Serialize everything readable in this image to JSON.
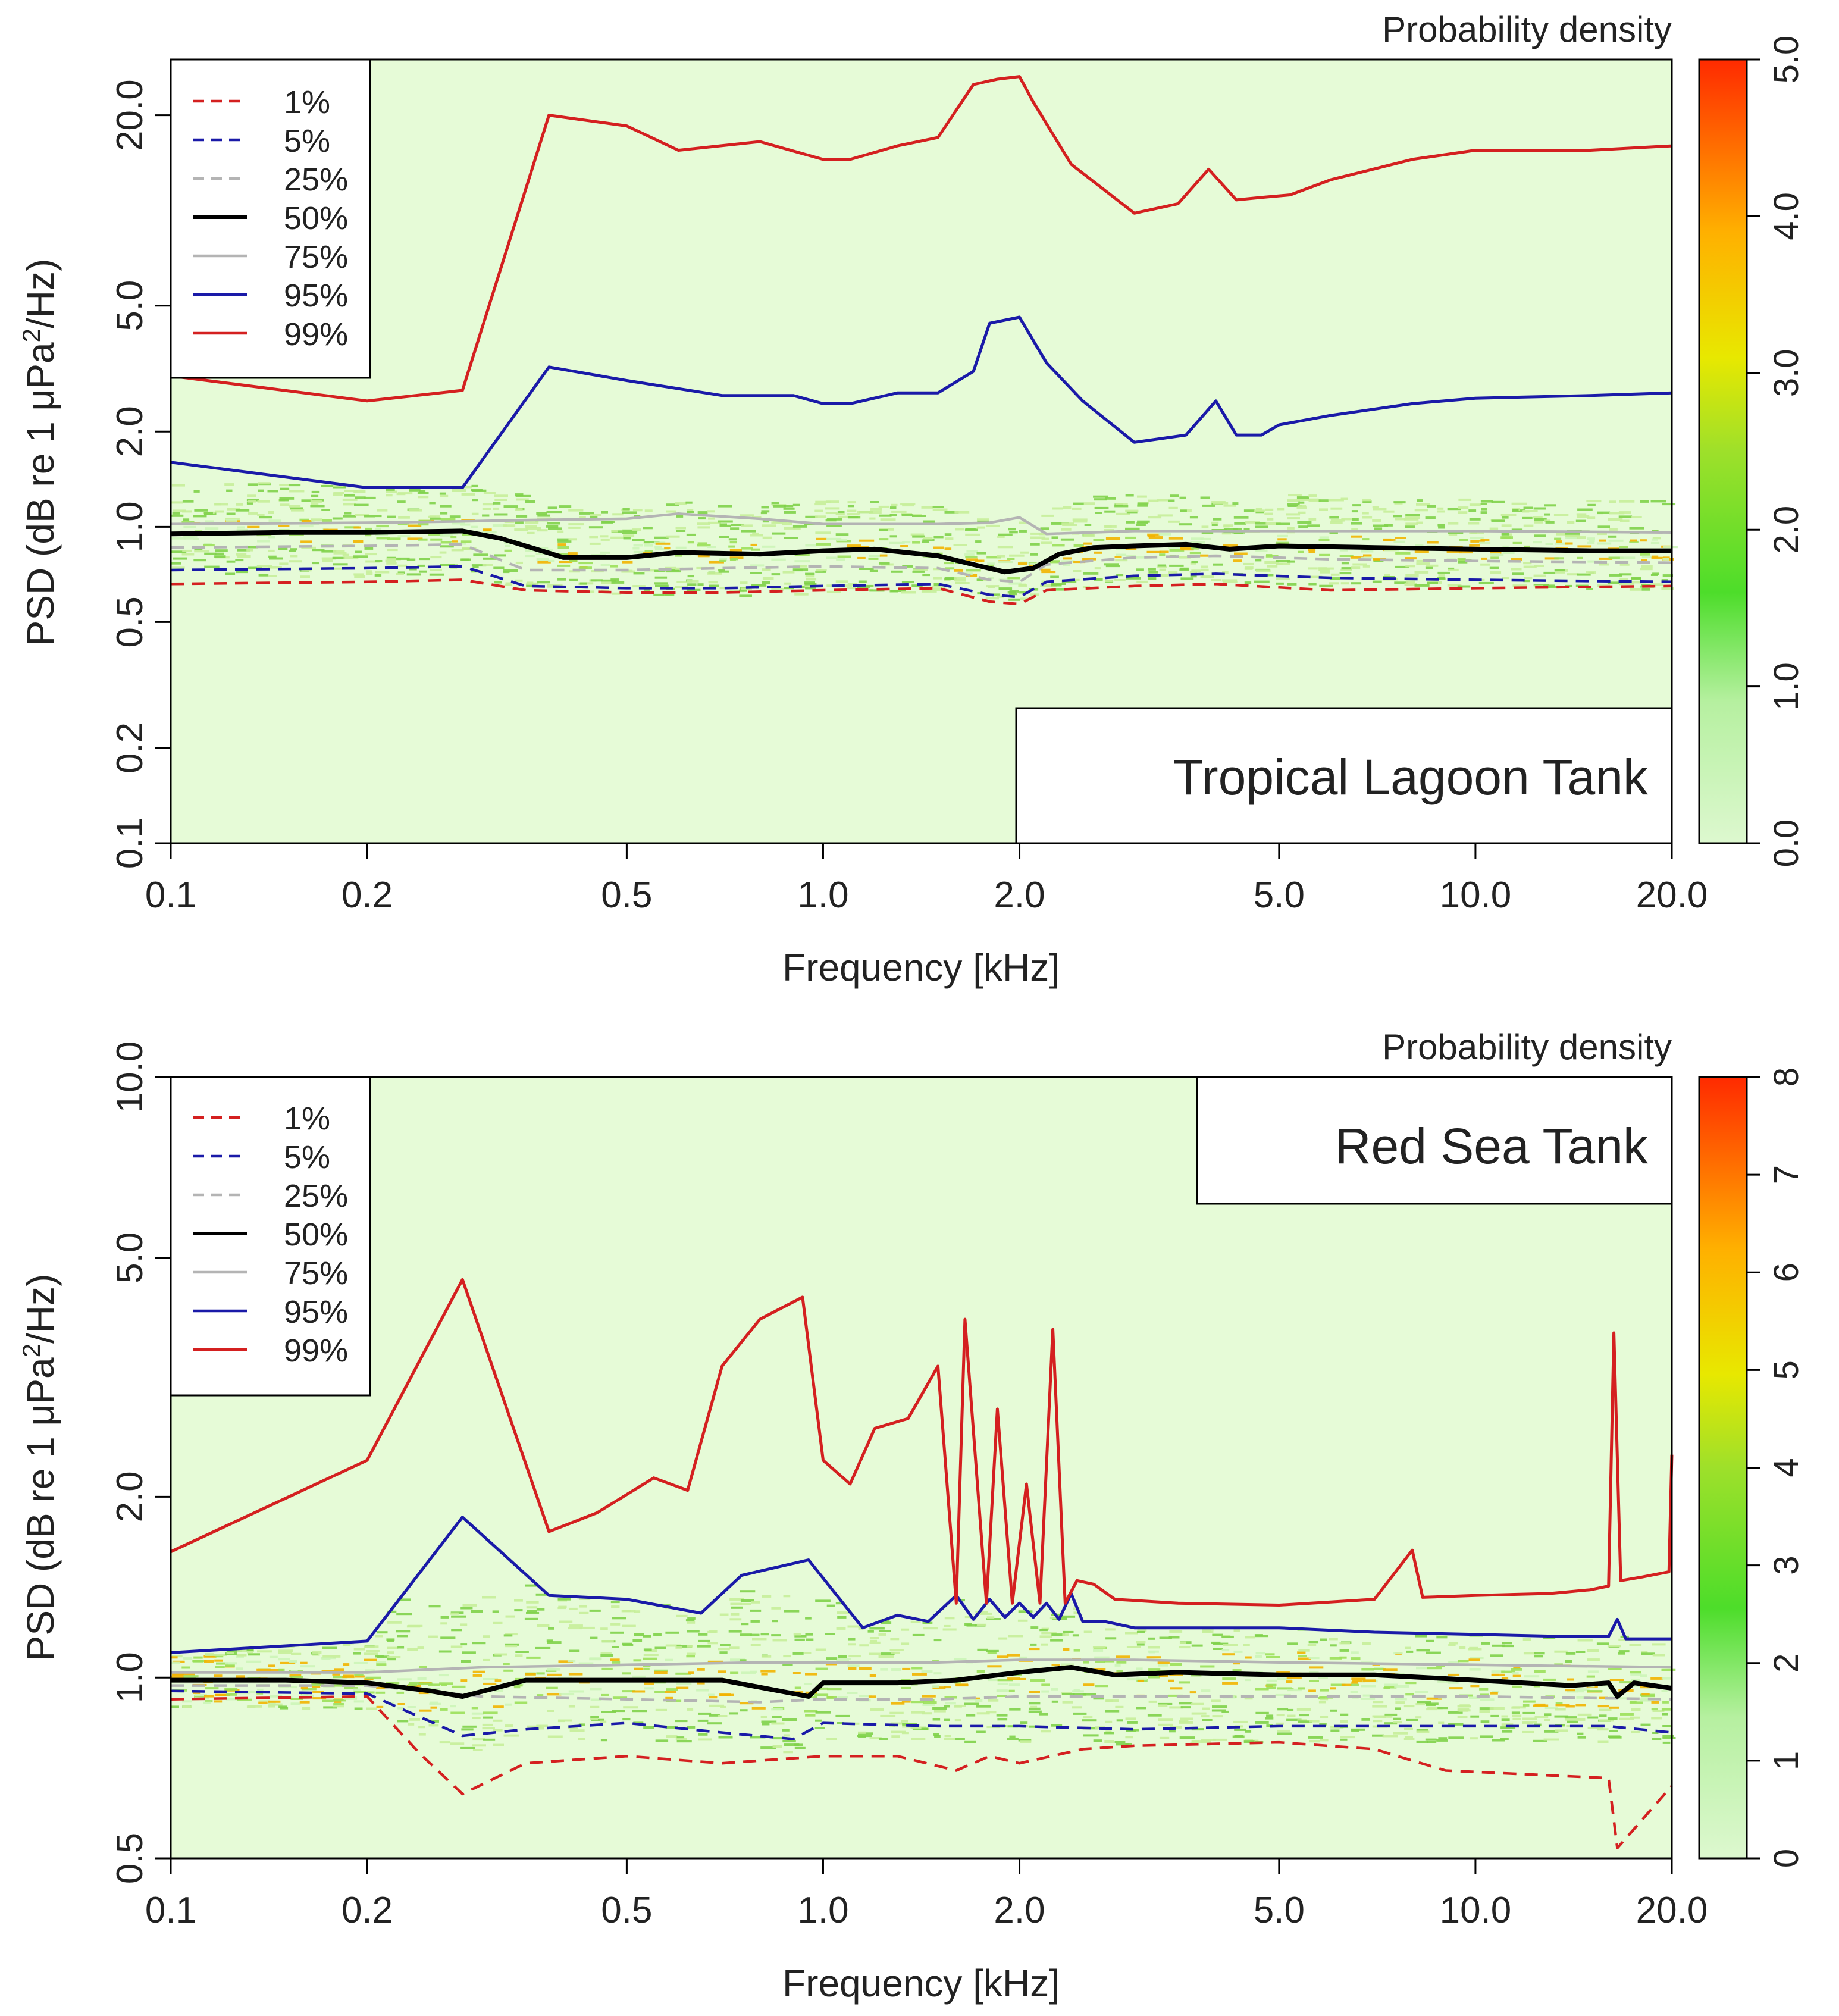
{
  "colors": {
    "plot_bg": "#e6fbd7",
    "p1": "#d42020",
    "p5": "#1a1aa8",
    "p25": "#b4b4b4",
    "p50": "#000000",
    "p75": "#b4b4b4",
    "p95": "#1a1aa8",
    "p99": "#d42020",
    "density_low": "#ccf5b8",
    "density_mid": "#9be05a",
    "density_hi": "#f2b400"
  },
  "chart_data": [
    {
      "type": "line",
      "title": "Tropical Lagoon Tank",
      "xlabel": "Frequency [kHz]",
      "ylabel_parts": {
        "a": "PSD (dB re 1 μPa",
        "sup": "2",
        "b": "/Hz)"
      },
      "x_scale": "log",
      "y_scale": "log",
      "xlim": [
        0.1,
        20.0
      ],
      "ylim": [
        0.1,
        30.0
      ],
      "x_ticks": [
        {
          "v": 0.1,
          "label": "0.1"
        },
        {
          "v": 0.2,
          "label": "0.2"
        },
        {
          "v": 0.5,
          "label": "0.5"
        },
        {
          "v": 1.0,
          "label": "1.0"
        },
        {
          "v": 2.0,
          "label": "2.0"
        },
        {
          "v": 5.0,
          "label": "5.0"
        },
        {
          "v": 10.0,
          "label": "10.0"
        },
        {
          "v": 20.0,
          "label": "20.0"
        }
      ],
      "y_ticks": [
        {
          "v": 0.1,
          "label": "0.1"
        },
        {
          "v": 0.2,
          "label": "0.2"
        },
        {
          "v": 0.5,
          "label": "0.5"
        },
        {
          "v": 1.0,
          "label": "1.0"
        },
        {
          "v": 2.0,
          "label": "2.0"
        },
        {
          "v": 5.0,
          "label": "5.0"
        },
        {
          "v": 20.0,
          "label": "20.0"
        }
      ],
      "colorbar": {
        "title": "Probability density",
        "range": [
          0,
          5
        ],
        "ticks": [
          {
            "v": 0,
            "label": "0.0"
          },
          {
            "v": 1,
            "label": "1.0"
          },
          {
            "v": 2,
            "label": "2.0"
          },
          {
            "v": 3,
            "label": "3.0"
          },
          {
            "v": 4,
            "label": "4.0"
          },
          {
            "v": 5,
            "label": "5.0"
          }
        ]
      },
      "legend": {
        "position": "top-left",
        "entries": [
          {
            "label": "1%",
            "color_key": "p1",
            "style": "dashed"
          },
          {
            "label": "5%",
            "color_key": "p5",
            "style": "dashed"
          },
          {
            "label": "25%",
            "color_key": "p25",
            "style": "dashed"
          },
          {
            "label": "50%",
            "color_key": "p50",
            "style": "solid"
          },
          {
            "label": "75%",
            "color_key": "p75",
            "style": "solid"
          },
          {
            "label": "95%",
            "color_key": "p95",
            "style": "solid"
          },
          {
            "label": "99%",
            "color_key": "p99",
            "style": "solid"
          }
        ]
      },
      "series": [
        {
          "name": "1%",
          "x": [
            0.1,
            0.2,
            0.28,
            0.35,
            0.5,
            0.7,
            1.0,
            1.5,
            1.8,
            2.0,
            2.2,
            3.0,
            4.0,
            6.0,
            10.0,
            20.0
          ],
          "y": [
            0.66,
            0.67,
            0.68,
            0.63,
            0.62,
            0.62,
            0.63,
            0.64,
            0.58,
            0.57,
            0.63,
            0.65,
            0.66,
            0.63,
            0.64,
            0.65
          ]
        },
        {
          "name": "5%",
          "x": [
            0.1,
            0.2,
            0.28,
            0.35,
            0.5,
            0.7,
            1.0,
            1.5,
            1.8,
            2.0,
            2.2,
            3.0,
            4.0,
            6.0,
            10.0,
            20.0
          ],
          "y": [
            0.73,
            0.74,
            0.75,
            0.65,
            0.64,
            0.64,
            0.65,
            0.66,
            0.61,
            0.6,
            0.67,
            0.7,
            0.71,
            0.69,
            0.68,
            0.67
          ]
        },
        {
          "name": "25%",
          "x": [
            0.1,
            0.2,
            0.28,
            0.35,
            0.5,
            0.7,
            1.0,
            1.5,
            1.8,
            2.0,
            2.2,
            3.0,
            4.0,
            6.0,
            10.0,
            20.0
          ],
          "y": [
            0.86,
            0.87,
            0.88,
            0.73,
            0.73,
            0.74,
            0.75,
            0.74,
            0.68,
            0.67,
            0.76,
            0.8,
            0.81,
            0.79,
            0.78,
            0.77
          ]
        },
        {
          "name": "50%",
          "x": [
            0.1,
            0.15,
            0.2,
            0.28,
            0.32,
            0.4,
            0.5,
            0.6,
            0.8,
            1.0,
            1.2,
            1.5,
            1.7,
            1.9,
            2.1,
            2.3,
            2.6,
            3.0,
            3.6,
            4.2,
            5.0,
            7.0,
            10.0,
            15.0,
            20.0
          ],
          "y": [
            0.95,
            0.96,
            0.96,
            0.97,
            0.92,
            0.8,
            0.8,
            0.83,
            0.82,
            0.84,
            0.85,
            0.81,
            0.76,
            0.72,
            0.74,
            0.82,
            0.86,
            0.87,
            0.88,
            0.85,
            0.87,
            0.86,
            0.85,
            0.84,
            0.84
          ]
        },
        {
          "name": "75%",
          "x": [
            0.1,
            0.2,
            0.28,
            0.35,
            0.5,
            0.6,
            0.8,
            1.0,
            1.5,
            1.8,
            2.0,
            2.2,
            3.0,
            5.0,
            10.0,
            20.0
          ],
          "y": [
            1.02,
            1.03,
            1.04,
            1.05,
            1.06,
            1.1,
            1.06,
            1.02,
            1.02,
            1.03,
            1.07,
            0.95,
            0.97,
            0.97,
            0.97,
            0.96
          ]
        },
        {
          "name": "95%",
          "x": [
            0.1,
            0.2,
            0.28,
            0.38,
            0.5,
            0.7,
            0.9,
            1.0,
            1.1,
            1.3,
            1.5,
            1.7,
            1.8,
            2.0,
            2.2,
            2.5,
            3.0,
            3.6,
            4.0,
            4.3,
            4.7,
            5.0,
            6.0,
            8.0,
            10.0,
            15.0,
            20.0
          ],
          "y": [
            1.6,
            1.33,
            1.33,
            3.2,
            2.9,
            2.6,
            2.6,
            2.45,
            2.45,
            2.65,
            2.65,
            3.1,
            4.4,
            4.6,
            3.3,
            2.5,
            1.85,
            1.95,
            2.5,
            1.95,
            1.95,
            2.1,
            2.25,
            2.45,
            2.55,
            2.6,
            2.65
          ]
        },
        {
          "name": "99%",
          "x": [
            0.1,
            0.2,
            0.28,
            0.38,
            0.5,
            0.6,
            0.8,
            1.0,
            1.1,
            1.3,
            1.5,
            1.7,
            1.85,
            2.0,
            2.1,
            2.4,
            3.0,
            3.5,
            3.9,
            4.3,
            4.7,
            5.2,
            6.0,
            8.0,
            10.0,
            15.0,
            20.0
          ],
          "y": [
            3.0,
            2.5,
            2.7,
            20.0,
            18.5,
            15.5,
            16.5,
            14.5,
            14.5,
            16.0,
            17.0,
            25.0,
            26.0,
            26.5,
            22.0,
            14.0,
            9.8,
            10.5,
            13.5,
            10.8,
            11.0,
            11.2,
            12.5,
            14.5,
            15.5,
            15.5,
            16.0
          ]
        }
      ]
    },
    {
      "type": "line",
      "title": "Red Sea Tank",
      "xlabel": "Frequency [kHz]",
      "ylabel_parts": {
        "a": "PSD (dB re 1 μPa",
        "sup": "2",
        "b": "/Hz)"
      },
      "x_scale": "log",
      "y_scale": "log",
      "xlim": [
        0.1,
        20.0
      ],
      "ylim": [
        0.5,
        10.0
      ],
      "x_ticks": [
        {
          "v": 0.1,
          "label": "0.1"
        },
        {
          "v": 0.2,
          "label": "0.2"
        },
        {
          "v": 0.5,
          "label": "0.5"
        },
        {
          "v": 1.0,
          "label": "1.0"
        },
        {
          "v": 2.0,
          "label": "2.0"
        },
        {
          "v": 5.0,
          "label": "5.0"
        },
        {
          "v": 10.0,
          "label": "10.0"
        },
        {
          "v": 20.0,
          "label": "20.0"
        }
      ],
      "y_ticks": [
        {
          "v": 0.5,
          "label": "0.5"
        },
        {
          "v": 1.0,
          "label": "1.0"
        },
        {
          "v": 2.0,
          "label": "2.0"
        },
        {
          "v": 5.0,
          "label": "5.0"
        },
        {
          "v": 10.0,
          "label": "10.0"
        }
      ],
      "colorbar": {
        "title": "Probability density",
        "range": [
          0,
          8
        ],
        "ticks": [
          {
            "v": 0,
            "label": "0"
          },
          {
            "v": 1,
            "label": "1"
          },
          {
            "v": 2,
            "label": "2"
          },
          {
            "v": 3,
            "label": "3"
          },
          {
            "v": 4,
            "label": "4"
          },
          {
            "v": 5,
            "label": "5"
          },
          {
            "v": 6,
            "label": "6"
          },
          {
            "v": 7,
            "label": "7"
          },
          {
            "v": 8,
            "label": "8"
          }
        ]
      },
      "legend": {
        "position": "top-left",
        "entries": [
          {
            "label": "1%",
            "color_key": "p1",
            "style": "dashed"
          },
          {
            "label": "5%",
            "color_key": "p5",
            "style": "dashed"
          },
          {
            "label": "25%",
            "color_key": "p25",
            "style": "dashed"
          },
          {
            "label": "50%",
            "color_key": "p50",
            "style": "solid"
          },
          {
            "label": "75%",
            "color_key": "p75",
            "style": "solid"
          },
          {
            "label": "95%",
            "color_key": "p95",
            "style": "solid"
          },
          {
            "label": "99%",
            "color_key": "p99",
            "style": "solid"
          }
        ]
      },
      "series": [
        {
          "name": "1%",
          "x": [
            0.1,
            0.2,
            0.24,
            0.28,
            0.35,
            0.5,
            0.7,
            1.0,
            1.3,
            1.6,
            1.8,
            2.0,
            2.5,
            3.0,
            5.0,
            7.0,
            9.0,
            12.0,
            16.0,
            16.5,
            20.0
          ],
          "y": [
            0.92,
            0.93,
            0.75,
            0.64,
            0.72,
            0.74,
            0.72,
            0.74,
            0.74,
            0.7,
            0.74,
            0.72,
            0.76,
            0.77,
            0.78,
            0.76,
            0.7,
            0.69,
            0.68,
            0.52,
            0.66
          ]
        },
        {
          "name": "5%",
          "x": [
            0.1,
            0.2,
            0.28,
            0.35,
            0.5,
            0.7,
            0.9,
            1.0,
            1.5,
            2.0,
            3.0,
            5.0,
            10.0,
            16.0,
            20.0
          ],
          "y": [
            0.95,
            0.94,
            0.8,
            0.82,
            0.84,
            0.81,
            0.79,
            0.84,
            0.83,
            0.83,
            0.82,
            0.83,
            0.83,
            0.83,
            0.81
          ]
        },
        {
          "name": "25%",
          "x": [
            0.1,
            0.2,
            0.3,
            0.5,
            0.8,
            1.0,
            1.5,
            2.0,
            3.0,
            5.0,
            10.0,
            20.0
          ],
          "y": [
            0.97,
            0.97,
            0.93,
            0.92,
            0.91,
            0.92,
            0.92,
            0.93,
            0.93,
            0.93,
            0.93,
            0.92
          ]
        },
        {
          "name": "50%",
          "x": [
            0.1,
            0.15,
            0.2,
            0.25,
            0.28,
            0.35,
            0.5,
            0.7,
            0.95,
            1.0,
            1.3,
            1.6,
            2.0,
            2.4,
            2.8,
            3.5,
            5.0,
            7.0,
            10.0,
            14.0,
            16.0,
            16.5,
            17.5,
            20.0
          ],
          "y": [
            0.99,
            0.99,
            0.98,
            0.95,
            0.93,
            0.99,
            0.99,
            0.99,
            0.93,
            0.98,
            0.98,
            0.99,
            1.02,
            1.04,
            1.01,
            1.02,
            1.01,
            1.01,
            0.99,
            0.97,
            0.98,
            0.93,
            0.98,
            0.96
          ]
        },
        {
          "name": "75%",
          "x": [
            0.1,
            0.2,
            0.3,
            0.5,
            0.8,
            1.0,
            1.5,
            2.0,
            3.0,
            5.0,
            10.0,
            20.0
          ],
          "y": [
            1.02,
            1.02,
            1.04,
            1.05,
            1.06,
            1.06,
            1.06,
            1.07,
            1.07,
            1.06,
            1.05,
            1.04
          ]
        },
        {
          "name": "95%",
          "x": [
            0.1,
            0.2,
            0.28,
            0.38,
            0.5,
            0.65,
            0.75,
            0.95,
            1.15,
            1.3,
            1.45,
            1.6,
            1.7,
            1.8,
            1.9,
            2.0,
            2.1,
            2.2,
            2.3,
            2.4,
            2.5,
            2.7,
            3.0,
            4.0,
            5.0,
            7.0,
            10.0,
            14.0,
            16.0,
            16.5,
            17.0,
            20.0
          ],
          "y": [
            1.1,
            1.15,
            1.85,
            1.37,
            1.35,
            1.28,
            1.48,
            1.57,
            1.21,
            1.27,
            1.24,
            1.37,
            1.25,
            1.35,
            1.26,
            1.33,
            1.26,
            1.33,
            1.25,
            1.38,
            1.24,
            1.24,
            1.21,
            1.21,
            1.21,
            1.19,
            1.18,
            1.17,
            1.17,
            1.25,
            1.16,
            1.16
          ]
        },
        {
          "name": "99%",
          "x": [
            0.1,
            0.2,
            0.28,
            0.38,
            0.45,
            0.55,
            0.62,
            0.7,
            0.8,
            0.93,
            1.0,
            1.1,
            1.2,
            1.35,
            1.5,
            1.6,
            1.65,
            1.78,
            1.85,
            1.95,
            2.05,
            2.15,
            2.25,
            2.35,
            2.45,
            2.6,
            2.8,
            3.5,
            5.0,
            7.0,
            8.0,
            8.3,
            10.0,
            13.0,
            15.0,
            16.0,
            16.3,
            16.7,
            18.0,
            19.8,
            20.0
          ],
          "y": [
            1.62,
            2.3,
            4.6,
            1.75,
            1.88,
            2.15,
            2.05,
            3.3,
            3.95,
            4.3,
            2.3,
            2.1,
            2.6,
            2.7,
            3.3,
            1.33,
            3.95,
            1.33,
            2.8,
            1.33,
            2.1,
            1.33,
            3.8,
            1.33,
            1.45,
            1.43,
            1.35,
            1.33,
            1.32,
            1.35,
            1.63,
            1.36,
            1.37,
            1.38,
            1.4,
            1.42,
            3.75,
            1.45,
            1.47,
            1.5,
            2.35
          ]
        }
      ]
    }
  ]
}
